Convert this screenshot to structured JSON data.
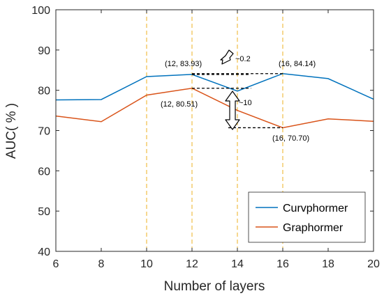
{
  "chart_data": {
    "type": "line",
    "xlabel": "Number of layers",
    "ylabel": "AUC( % )",
    "xlim": [
      6,
      20
    ],
    "ylim": [
      40,
      100
    ],
    "xticks": [
      6,
      8,
      10,
      12,
      14,
      16,
      18,
      20
    ],
    "yticks": [
      40,
      50,
      60,
      70,
      80,
      90,
      100
    ],
    "grid": false,
    "legend_position": "bottom-right",
    "x": [
      6,
      8,
      10,
      12,
      14,
      16,
      18,
      20
    ],
    "series": [
      {
        "name": "Curvphormer",
        "color": "#0072BD",
        "values": [
          77.6,
          77.7,
          83.4,
          83.93,
          79.8,
          84.14,
          82.9,
          77.8
        ]
      },
      {
        "name": "Graphormer",
        "color": "#D95319",
        "values": [
          73.6,
          72.2,
          78.8,
          80.51,
          75.0,
          70.7,
          72.9,
          72.3
        ]
      }
    ],
    "reference_lines": {
      "x": [
        10,
        12,
        14,
        16
      ],
      "color": "#EDB120",
      "style": "dashed"
    },
    "annotations": {
      "point_labels": [
        {
          "text": "(12, 83.93)",
          "x": 12,
          "y": 83.93
        },
        {
          "text": "(16, 84.14)",
          "x": 16,
          "y": 84.14
        },
        {
          "text": "(12, 80.51)",
          "x": 12,
          "y": 80.51
        },
        {
          "text": "(16, 70.70)",
          "x": 16,
          "y": 70.7
        }
      ],
      "diff_small": "~0.2",
      "diff_large": "~10"
    }
  }
}
